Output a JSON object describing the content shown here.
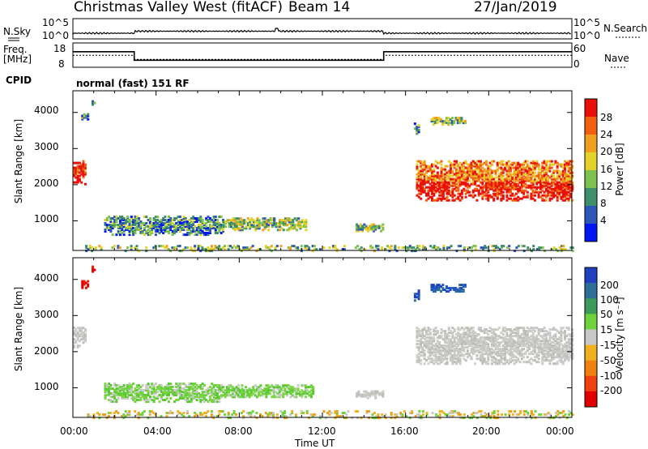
{
  "header": {
    "station": "Christmas Valley West (fitACF)",
    "beam": "Beam 14",
    "date": "27/Jan/2019"
  },
  "status_panels": {
    "left_labels": [
      "N.Sky",
      "Freq.",
      "[MHz]",
      "CPID"
    ],
    "right_labels": [
      "N.Search",
      "Nave"
    ],
    "noise_ticks_left": [
      "10^5",
      "10^0"
    ],
    "noise_ticks_right": [
      "10^5",
      "10^0"
    ],
    "freq_ticks_left": [
      "18",
      "8"
    ],
    "freq_ticks_right": [
      "60",
      "0"
    ],
    "cpid_text": "normal (fast) 151 RF",
    "freq_series": {
      "x_hours": [
        0,
        2.95,
        2.95,
        14.95,
        14.95,
        24
      ],
      "freq_mhz": [
        14.5,
        14.5,
        10.3,
        10.3,
        14.5,
        14.5
      ]
    },
    "nave_series": {
      "x_hours": [
        0,
        2.95,
        2.95,
        14.95,
        14.95,
        24
      ],
      "nave": [
        28,
        28,
        16,
        16,
        28,
        28
      ]
    }
  },
  "x_axis": {
    "label": "Time UT",
    "ticks": [
      "00:00",
      "04:00",
      "08:00",
      "12:00",
      "16:00",
      "20:00",
      "00:00"
    ]
  },
  "chart_data": [
    {
      "type": "heatmap",
      "title": "Power",
      "ylabel": "Slant Range [km]",
      "xlabel": "Time UT",
      "xlim_hours": [
        0,
        24
      ],
      "ylim_km": [
        180,
        4600
      ],
      "yticks": [
        "1000",
        "2000",
        "3000",
        "4000"
      ],
      "colorbar": {
        "label": "Power [dB]",
        "ticks": [
          "4",
          "8",
          "12",
          "16",
          "20",
          "24",
          "28"
        ],
        "colors": [
          "#0015f0",
          "#2e55b8",
          "#3f8f6a",
          "#7dc24e",
          "#e3d22a",
          "#f0a020",
          "#f06010",
          "#e81008"
        ]
      },
      "regions": [
        {
          "start": 0.0,
          "end": 0.6,
          "low": 2050,
          "high": 2700,
          "level": 0.95
        },
        {
          "start": 0.4,
          "end": 0.75,
          "low": 3800,
          "high": 4000,
          "level": 0.3
        },
        {
          "start": 0.9,
          "end": 1.05,
          "low": 4250,
          "high": 4400,
          "level": 0.2
        },
        {
          "start": 1.5,
          "end": 7.2,
          "low": 650,
          "high": 1150,
          "level": 0.3
        },
        {
          "start": 7.2,
          "end": 11.2,
          "low": 780,
          "high": 1100,
          "level": 0.45
        },
        {
          "start": 13.6,
          "end": 14.9,
          "low": 750,
          "high": 960,
          "level": 0.4
        },
        {
          "start": 16.4,
          "end": 16.6,
          "low": 3450,
          "high": 3750,
          "level": 0.3
        },
        {
          "start": 17.2,
          "end": 18.9,
          "low": 3700,
          "high": 3900,
          "level": 0.45
        },
        {
          "start": 16.5,
          "end": 24.0,
          "low": 1600,
          "high": 2700,
          "level": 0.85
        },
        {
          "start": 0.5,
          "end": 24.0,
          "low": 200,
          "high": 380,
          "level": 0.4
        }
      ]
    },
    {
      "type": "heatmap",
      "title": "Velocity",
      "ylabel": "Slant Range [km]",
      "xlabel": "Time UT",
      "xlim_hours": [
        0,
        24
      ],
      "ylim_km": [
        180,
        4600
      ],
      "yticks": [
        "1000",
        "2000",
        "3000",
        "4000"
      ],
      "colorbar": {
        "label": "Velocity [m s⁻¹]",
        "ticks": [
          "200",
          "100",
          "50",
          "15",
          "-15",
          "-50",
          "-100",
          "-200"
        ],
        "colors": [
          "#2040c0",
          "#2e6f9a",
          "#3c9a5a",
          "#6ed23c",
          "#c8c8c8",
          "#f0b020",
          "#f08010",
          "#f04010",
          "#e00000"
        ]
      },
      "regions": [
        {
          "start": 0.0,
          "end": 0.6,
          "low": 2150,
          "high": 2700,
          "color": "gray"
        },
        {
          "start": 0.4,
          "end": 0.75,
          "low": 3800,
          "high": 4000,
          "color": "red"
        },
        {
          "start": 0.9,
          "end": 1.05,
          "low": 4250,
          "high": 4400,
          "color": "red"
        },
        {
          "start": 1.5,
          "end": 7.0,
          "low": 650,
          "high": 1150,
          "color": "green"
        },
        {
          "start": 7.0,
          "end": 11.5,
          "low": 780,
          "high": 1100,
          "color": "green"
        },
        {
          "start": 13.6,
          "end": 14.9,
          "low": 750,
          "high": 960,
          "color": "gray"
        },
        {
          "start": 16.4,
          "end": 16.6,
          "low": 3450,
          "high": 3750,
          "color": "blue"
        },
        {
          "start": 17.2,
          "end": 18.9,
          "low": 3700,
          "high": 3900,
          "color": "blue"
        },
        {
          "start": 16.5,
          "end": 24.0,
          "low": 1700,
          "high": 2700,
          "color": "gray"
        },
        {
          "start": 0.5,
          "end": 24.0,
          "low": 200,
          "high": 420,
          "color": "orange"
        }
      ]
    }
  ]
}
